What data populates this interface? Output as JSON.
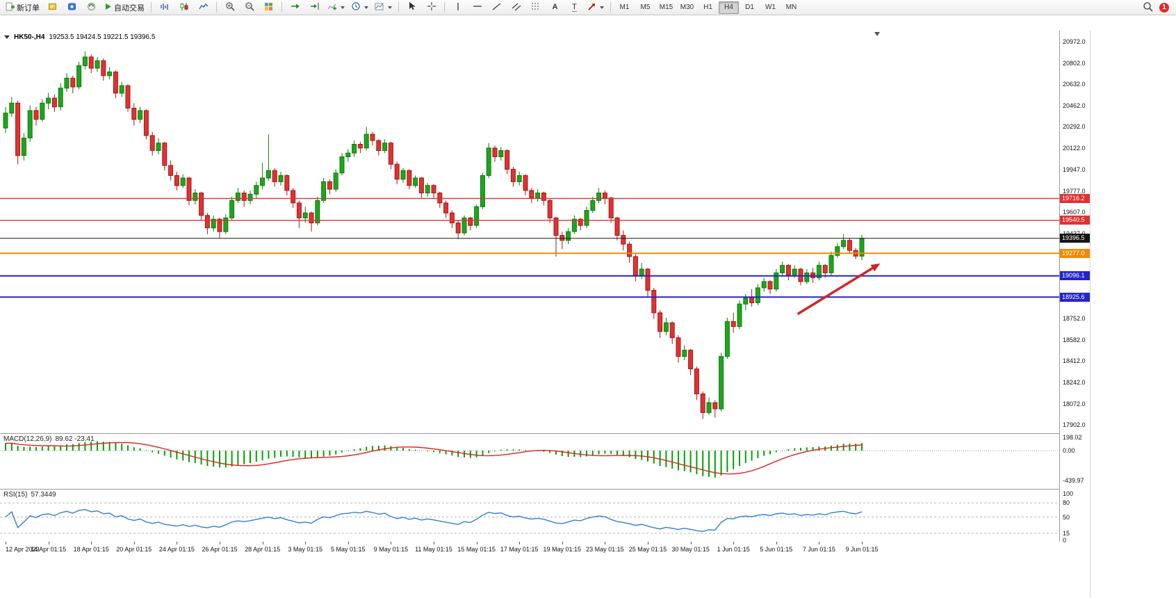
{
  "toolbar": {
    "new_order_label": "新订单",
    "autotrade_label": "自动交易",
    "timeframes": [
      "M1",
      "M5",
      "M15",
      "M30",
      "H1",
      "H4",
      "D1",
      "W1",
      "MN"
    ],
    "active_timeframe": "H4",
    "notification_count": "1",
    "glyphs": {
      "text_tool": "A",
      "text_label_tool": "T"
    },
    "icon_names": [
      "new-order-icon",
      "metaeditor-icon",
      "market-icon",
      "community-icon",
      "autotrade-icon",
      "bar-chart-icon",
      "candlestick-chart-icon",
      "line-chart-icon",
      "zoom-in-icon",
      "zoom-out-icon",
      "tile-windows-icon",
      "auto-scroll-icon",
      "chart-shift-icon",
      "indicators-icon",
      "periods-icon",
      "templates-icon",
      "cursor-icon",
      "crosshair-icon",
      "vertical-line-icon",
      "horizontal-line-icon",
      "trendline-icon",
      "equidistant-channel-icon",
      "fibonacci-icon",
      "text-icon",
      "text-label-icon",
      "arrow-tool-icon",
      "search-icon"
    ]
  },
  "chart": {
    "symbol_period": "HK50-,H4",
    "ohlc_text": "19253.5 19424.5 19221.5 19396.5",
    "price_axis_labels": [
      "20972.0",
      "20802.0",
      "20632.0",
      "20462.0",
      "20292.0",
      "20122.0",
      "19947.0",
      "19777.0",
      "19607.0",
      "19437.0",
      "18752.0",
      "18582.0",
      "18412.0",
      "18242.0",
      "18072.0",
      "17902.0"
    ],
    "levels": [
      {
        "label": "19716.2",
        "value": 19716.2,
        "color": "#E03232",
        "text_color": "#FFFFFF",
        "line_width": 1.4
      },
      {
        "label": "19540.5",
        "value": 19540.5,
        "color": "#E03232",
        "text_color": "#FFFFFF",
        "line_width": 1.4
      },
      {
        "label": "19396.5",
        "value": 19396.5,
        "color": "#141414",
        "text_color": "#FFFFFF",
        "line_width": 1
      },
      {
        "label": "19277.0",
        "value": 19277.0,
        "color": "#F08A00",
        "text_color": "#FFFFFF",
        "line_width": 2
      },
      {
        "label": "19096.1",
        "value": 19096.1,
        "color": "#2424CC",
        "text_color": "#FFFFFF",
        "line_width": 2
      },
      {
        "label": "18925.6",
        "value": 18925.6,
        "color": "#2424CC",
        "text_color": "#FFFFFF",
        "line_width": 2
      }
    ],
    "trend_arrow": {
      "from_bar": 129.5,
      "from_price": 18790,
      "to_bar": 143.0,
      "to_price": 19195,
      "color": "#D62121"
    }
  },
  "chart_data": {
    "type": "candlestick",
    "symbol": "HK50-",
    "timeframe": "H4",
    "current_bar": {
      "open": 19253.5,
      "high": 19424.5,
      "low": 19221.5,
      "close": 19396.5
    },
    "ylim": [
      17835,
      21061
    ],
    "bars_per_label": 7,
    "up_color": "#1FA51F",
    "down_color": "#E03232",
    "x_labels": [
      "12 Apr 2023",
      "14 Apr 01:15",
      "18 Apr 01:15",
      "20 Apr 01:15",
      "24 Apr 01:15",
      "26 Apr 01:15",
      "28 Apr 01:15",
      "3 May 01:15",
      "5 May 01:15",
      "9 May 01:15",
      "11 May 01:15",
      "15 May 01:15",
      "17 May 01:15",
      "19 May 01:15",
      "23 May 01:15",
      "25 May 01:15",
      "30 May 01:15",
      "1 Jun 01:15",
      "5 Jun 01:15",
      "7 Jun 01:15",
      "9 Jun 01:15"
    ],
    "candles": [
      [
        20280,
        20450,
        20240,
        20400
      ],
      [
        20400,
        20530,
        20370,
        20480
      ],
      [
        20480,
        20500,
        19990,
        20060
      ],
      [
        20060,
        20240,
        20020,
        20200
      ],
      [
        20200,
        20460,
        20170,
        20420
      ],
      [
        20420,
        20450,
        20300,
        20350
      ],
      [
        20350,
        20510,
        20330,
        20480
      ],
      [
        20480,
        20560,
        20430,
        20520
      ],
      [
        20520,
        20550,
        20410,
        20450
      ],
      [
        20450,
        20640,
        20420,
        20600
      ],
      [
        20600,
        20720,
        20570,
        20680
      ],
      [
        20680,
        20700,
        20560,
        20610
      ],
      [
        20610,
        20810,
        20590,
        20780
      ],
      [
        20780,
        20895,
        20750,
        20850
      ],
      [
        20850,
        20870,
        20720,
        20760
      ],
      [
        20760,
        20850,
        20730,
        20820
      ],
      [
        20820,
        20840,
        20660,
        20700
      ],
      [
        20700,
        20770,
        20670,
        20730
      ],
      [
        20730,
        20740,
        20520,
        20560
      ],
      [
        20560,
        20650,
        20530,
        20620
      ],
      [
        20620,
        20630,
        20410,
        20440
      ],
      [
        20440,
        20480,
        20300,
        20350
      ],
      [
        20350,
        20450,
        20320,
        20420
      ],
      [
        20420,
        20430,
        20190,
        20220
      ],
      [
        20220,
        20250,
        20060,
        20100
      ],
      [
        20100,
        20200,
        20070,
        20160
      ],
      [
        20160,
        20170,
        19940,
        19980
      ],
      [
        19980,
        20020,
        19860,
        19900
      ],
      [
        19900,
        19930,
        19780,
        19820
      ],
      [
        19820,
        19910,
        19800,
        19880
      ],
      [
        19880,
        19890,
        19660,
        19700
      ],
      [
        19700,
        19790,
        19670,
        19760
      ],
      [
        19760,
        19770,
        19540,
        19580
      ],
      [
        19580,
        19600,
        19430,
        19480
      ],
      [
        19480,
        19580,
        19450,
        19550
      ],
      [
        19550,
        19560,
        19400,
        19450
      ],
      [
        19450,
        19590,
        19430,
        19560
      ],
      [
        19560,
        19730,
        19540,
        19700
      ],
      [
        19700,
        19800,
        19680,
        19760
      ],
      [
        19760,
        19780,
        19650,
        19700
      ],
      [
        19700,
        19780,
        19670,
        19750
      ],
      [
        19750,
        19850,
        19720,
        19820
      ],
      [
        19820,
        20000,
        19790,
        19880
      ],
      [
        19880,
        20230,
        19860,
        19940
      ],
      [
        19940,
        19960,
        19810,
        19850
      ],
      [
        19850,
        19930,
        19820,
        19900
      ],
      [
        19900,
        19910,
        19740,
        19780
      ],
      [
        19780,
        19800,
        19640,
        19680
      ],
      [
        19680,
        19700,
        19480,
        19560
      ],
      [
        19560,
        19650,
        19520,
        19600
      ],
      [
        19600,
        19610,
        19450,
        19520
      ],
      [
        19520,
        19730,
        19500,
        19700
      ],
      [
        19700,
        19880,
        19680,
        19850
      ],
      [
        19850,
        19870,
        19750,
        19790
      ],
      [
        19790,
        19950,
        19770,
        19920
      ],
      [
        19920,
        20080,
        19900,
        20050
      ],
      [
        20050,
        20110,
        20010,
        20080
      ],
      [
        20080,
        20180,
        20050,
        20150
      ],
      [
        20150,
        20170,
        20080,
        20120
      ],
      [
        20120,
        20290,
        20100,
        20230
      ],
      [
        20230,
        20250,
        20140,
        20180
      ],
      [
        20180,
        20190,
        20060,
        20100
      ],
      [
        20100,
        20190,
        20080,
        20160
      ],
      [
        20160,
        20170,
        19950,
        19990
      ],
      [
        19990,
        20010,
        19830,
        19870
      ],
      [
        19870,
        19960,
        19840,
        19940
      ],
      [
        19940,
        19950,
        19790,
        19820
      ],
      [
        19820,
        19900,
        19800,
        19880
      ],
      [
        19880,
        19890,
        19720,
        19760
      ],
      [
        19760,
        19840,
        19730,
        19820
      ],
      [
        19820,
        19830,
        19720,
        19760
      ],
      [
        19760,
        19770,
        19640,
        19680
      ],
      [
        19680,
        19700,
        19560,
        19600
      ],
      [
        19600,
        19620,
        19480,
        19520
      ],
      [
        19520,
        19540,
        19390,
        19440
      ],
      [
        19440,
        19580,
        19420,
        19560
      ],
      [
        19560,
        19570,
        19460,
        19500
      ],
      [
        19500,
        19670,
        19480,
        19650
      ],
      [
        19650,
        19920,
        19630,
        19900
      ],
      [
        19900,
        20160,
        19880,
        20120
      ],
      [
        20120,
        20140,
        20010,
        20050
      ],
      [
        20050,
        20130,
        20020,
        20100
      ],
      [
        20100,
        20110,
        19910,
        19950
      ],
      [
        19950,
        19970,
        19810,
        19850
      ],
      [
        19850,
        19930,
        19820,
        19900
      ],
      [
        19900,
        19910,
        19740,
        19780
      ],
      [
        19780,
        19800,
        19680,
        19720
      ],
      [
        19720,
        19790,
        19690,
        19760
      ],
      [
        19760,
        19770,
        19660,
        19700
      ],
      [
        19700,
        19710,
        19520,
        19560
      ],
      [
        19560,
        19570,
        19250,
        19420
      ],
      [
        19420,
        19450,
        19310,
        19380
      ],
      [
        19380,
        19480,
        19350,
        19450
      ],
      [
        19450,
        19580,
        19430,
        19550
      ],
      [
        19550,
        19560,
        19460,
        19500
      ],
      [
        19500,
        19650,
        19480,
        19620
      ],
      [
        19620,
        19730,
        19600,
        19700
      ],
      [
        19700,
        19800,
        19680,
        19760
      ],
      [
        19760,
        19780,
        19670,
        19720
      ],
      [
        19720,
        19730,
        19520,
        19560
      ],
      [
        19560,
        19570,
        19380,
        19420
      ],
      [
        19420,
        19460,
        19300,
        19350
      ],
      [
        19350,
        19370,
        19200,
        19250
      ],
      [
        19250,
        19270,
        19050,
        19100
      ],
      [
        19100,
        19200,
        19070,
        19150
      ],
      [
        19150,
        19160,
        18930,
        18980
      ],
      [
        18980,
        19000,
        18750,
        18800
      ],
      [
        18800,
        18820,
        18600,
        18650
      ],
      [
        18650,
        18760,
        18620,
        18720
      ],
      [
        18720,
        18730,
        18550,
        18600
      ],
      [
        18600,
        18620,
        18400,
        18450
      ],
      [
        18450,
        18540,
        18420,
        18500
      ],
      [
        18500,
        18510,
        18300,
        18350
      ],
      [
        18350,
        18370,
        18100,
        18150
      ],
      [
        18150,
        18170,
        17950,
        18000
      ],
      [
        18000,
        18120,
        17980,
        18080
      ],
      [
        18080,
        18100,
        17960,
        18030
      ],
      [
        18030,
        18480,
        18010,
        18450
      ],
      [
        18450,
        18760,
        18430,
        18730
      ],
      [
        18730,
        18800,
        18640,
        18690
      ],
      [
        18690,
        18900,
        18670,
        18870
      ],
      [
        18870,
        18950,
        18820,
        18920
      ],
      [
        18920,
        18990,
        18850,
        18880
      ],
      [
        18880,
        19030,
        18860,
        19000
      ],
      [
        19000,
        19080,
        18970,
        19050
      ],
      [
        19050,
        19060,
        18950,
        18990
      ],
      [
        18990,
        19150,
        18970,
        19120
      ],
      [
        19120,
        19210,
        19100,
        19180
      ],
      [
        19180,
        19190,
        19060,
        19100
      ],
      [
        19100,
        19180,
        19080,
        19150
      ],
      [
        19150,
        19160,
        19020,
        19050
      ],
      [
        19050,
        19150,
        19030,
        19120
      ],
      [
        19120,
        19160,
        19040,
        19080
      ],
      [
        19080,
        19210,
        19060,
        19180
      ],
      [
        19180,
        19190,
        19080,
        19120
      ],
      [
        19120,
        19290,
        19100,
        19260
      ],
      [
        19260,
        19360,
        19240,
        19330
      ],
      [
        19330,
        19430,
        19310,
        19380
      ],
      [
        19380,
        19400,
        19270,
        19300
      ],
      [
        19300,
        19320,
        19230,
        19253.5
      ],
      [
        19253.5,
        19424.5,
        19221.5,
        19396.5
      ]
    ],
    "indicators": [
      {
        "name": "MACD(12,26,9)",
        "values_text": "89.62 -23.41",
        "axis_labels": [
          "198.02",
          "0.00",
          "-439.97"
        ],
        "histogram_color": "#00A000",
        "signal_color": "#E02020",
        "range": [
          -570,
          250
        ]
      },
      {
        "name": "RSI(15)",
        "values_text": "57.3449",
        "axis_labels": [
          "100",
          "80",
          "50",
          "15",
          "0"
        ],
        "level_lines": [
          80,
          50,
          15
        ],
        "line_color": "#2F7ED8",
        "range": [
          0,
          100
        ]
      }
    ]
  }
}
